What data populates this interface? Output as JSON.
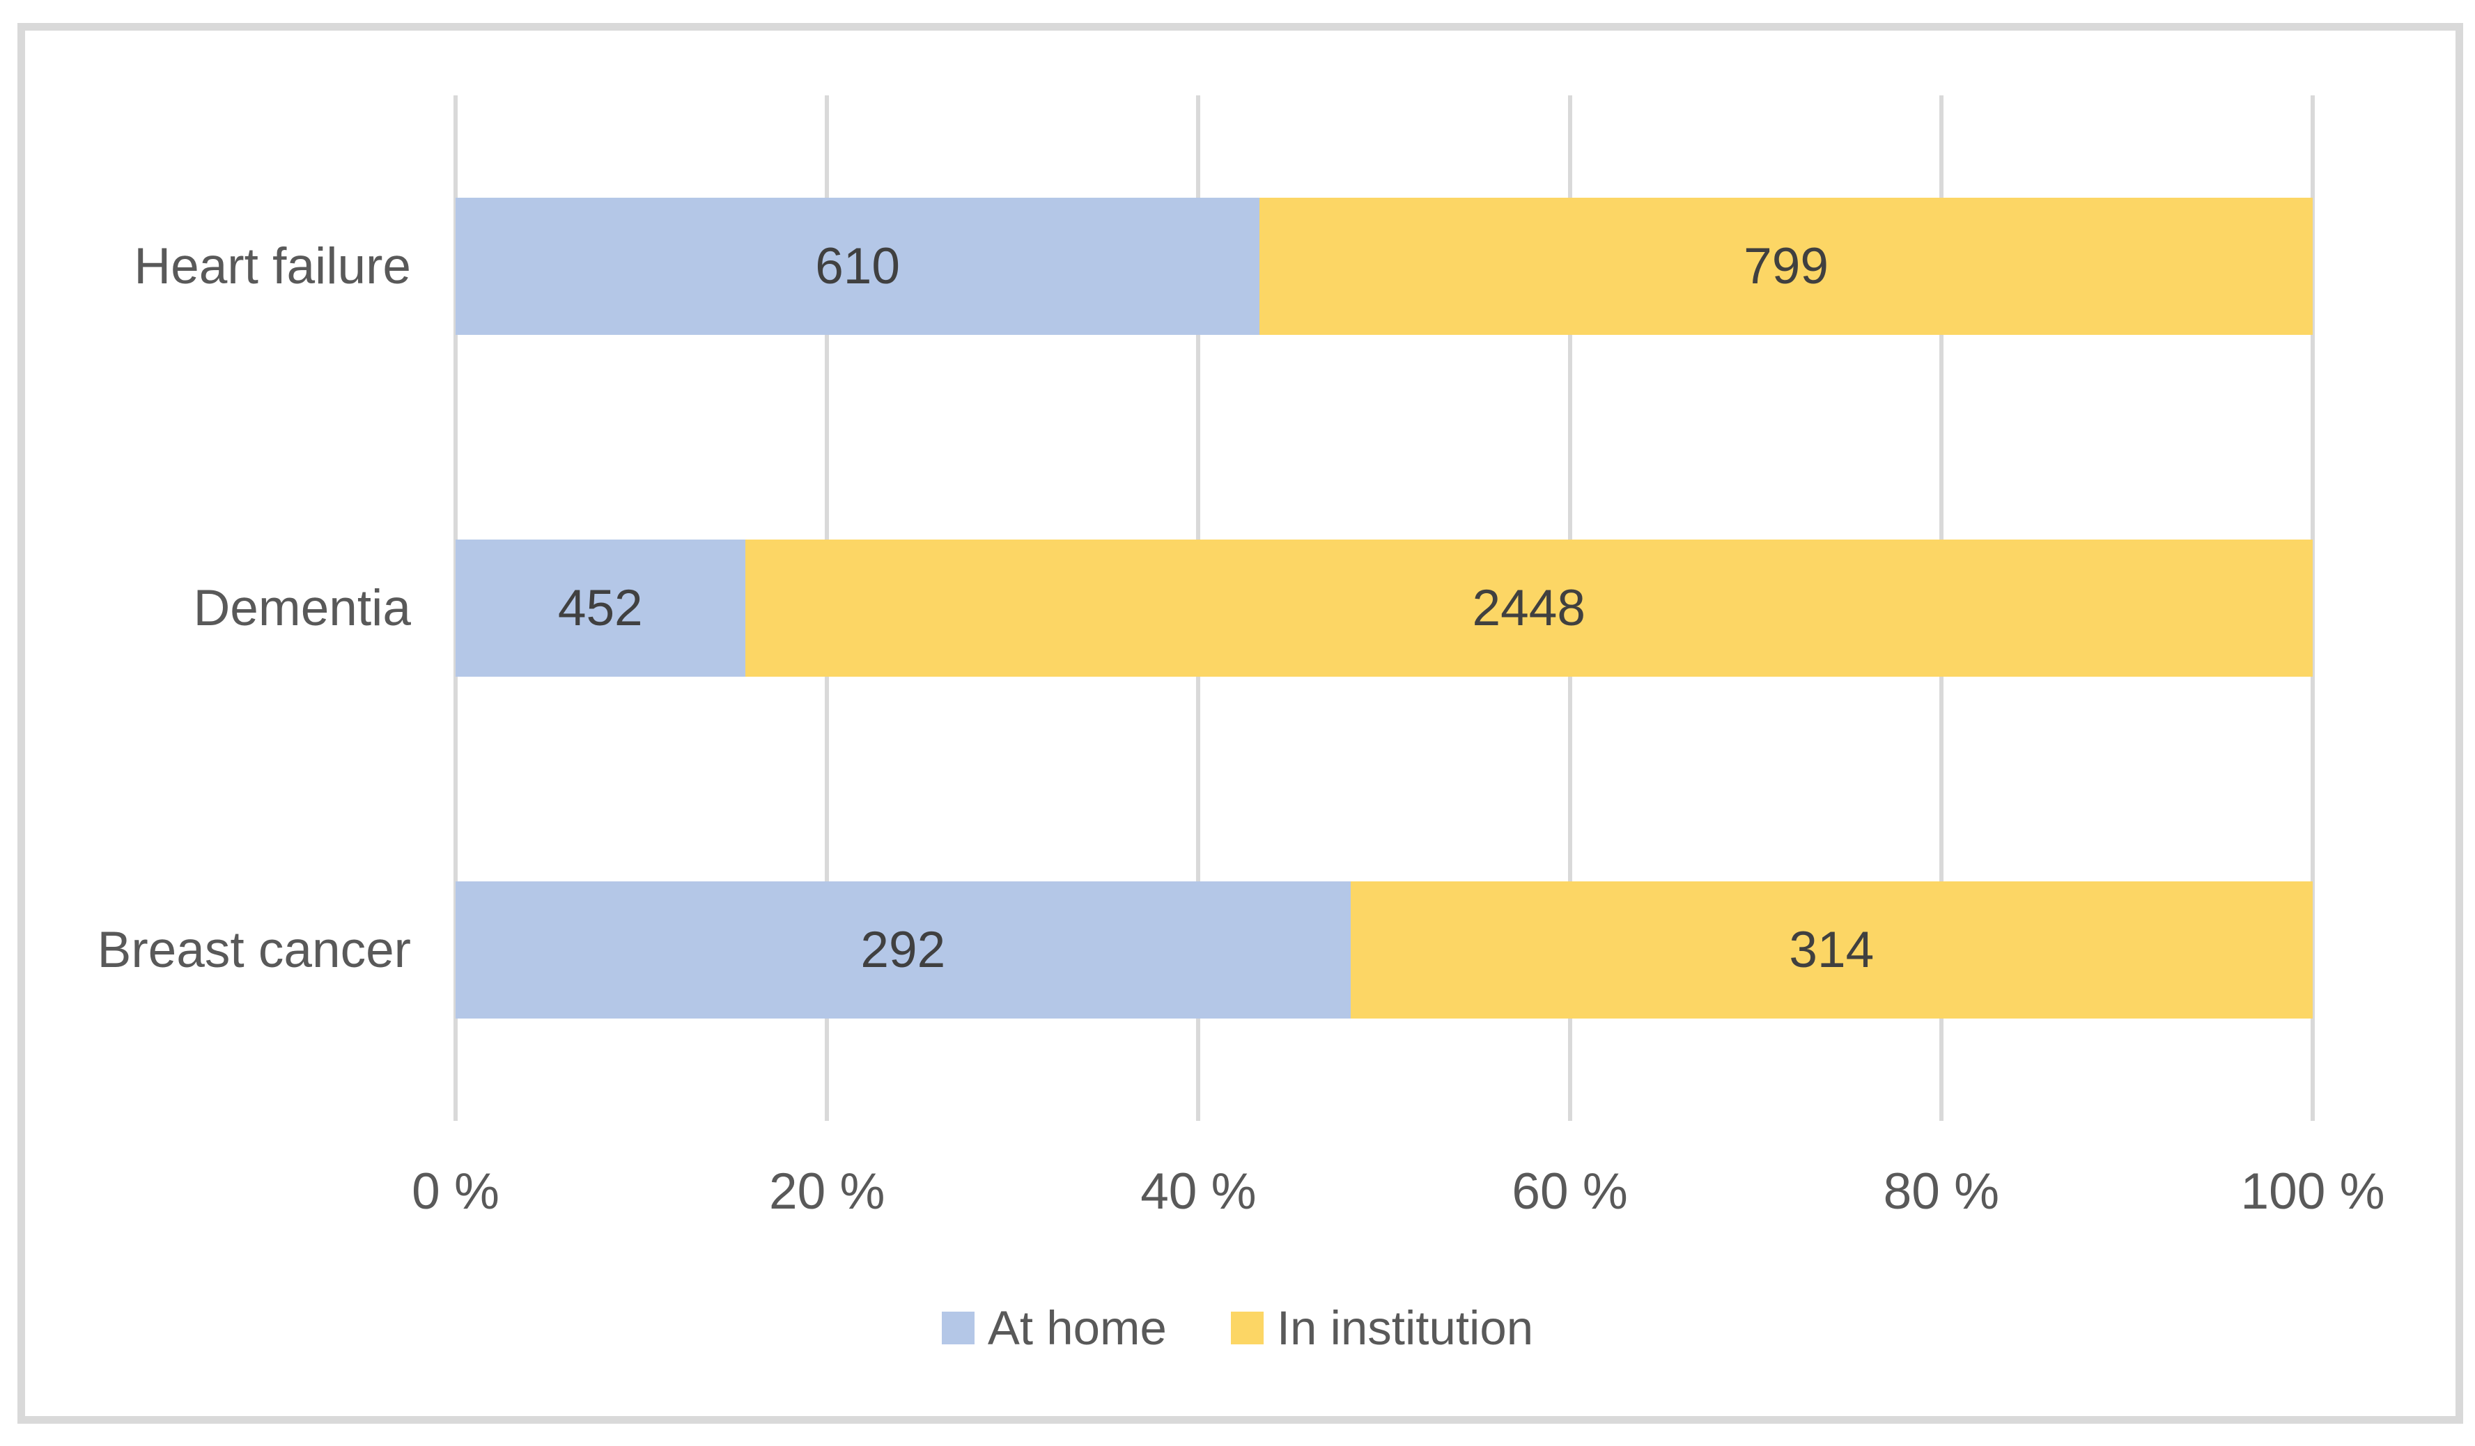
{
  "chart_data": {
    "type": "bar",
    "orientation": "horizontal",
    "stacking": "100%",
    "title": "",
    "xlabel": "",
    "ylabel": "",
    "categories": [
      "Heart failure",
      "Dementia",
      "Breast cancer"
    ],
    "series": [
      {
        "name": "At home",
        "color": "#B4C7E7",
        "values": [
          610,
          452,
          292
        ]
      },
      {
        "name": "In institution",
        "color": "#FCD665",
        "values": [
          799,
          2448,
          314
        ]
      }
    ],
    "segment_percentages": [
      {
        "category": "Heart failure",
        "at_home_pct": 43.3,
        "in_institution_pct": 56.7
      },
      {
        "category": "Dementia",
        "at_home_pct": 15.6,
        "in_institution_pct": 84.4
      },
      {
        "category": "Breast cancer",
        "at_home_pct": 48.2,
        "in_institution_pct": 51.8
      }
    ],
    "x_ticks": [
      "0 %",
      "20 %",
      "40 %",
      "60 %",
      "80 %",
      "100 %"
    ],
    "xlim": [
      0,
      100
    ],
    "grid": true,
    "legend_position": "bottom"
  },
  "colors": {
    "grid": "#D9D9D9",
    "frame_border": "#D9D9D9",
    "axis_text": "#595959",
    "value_label_text": "#404040",
    "background": "#FFFFFF"
  }
}
